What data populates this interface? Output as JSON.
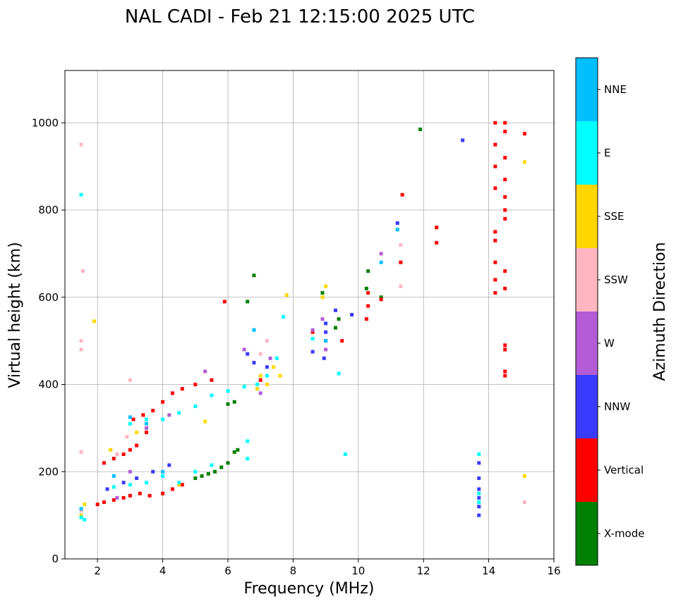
{
  "chart_data": {
    "type": "scatter",
    "title": "NAL CADI - Feb 21 12:15:00 2025 UTC",
    "xlabel": "Frequency (MHz)",
    "ylabel": "Virtual height (km)",
    "xlim": [
      1,
      16
    ],
    "ylim": [
      0,
      1120
    ],
    "xticks": [
      2,
      4,
      6,
      8,
      10,
      12,
      14,
      16
    ],
    "yticks": [
      0,
      200,
      400,
      600,
      800,
      1000
    ],
    "grid": true,
    "colorbar": {
      "label": "Azimuth Direction",
      "categories": [
        {
          "name": "X-mode",
          "color": "#008000"
        },
        {
          "name": "Vertical",
          "color": "#ff0000"
        },
        {
          "name": "NNW",
          "color": "#3b3bff"
        },
        {
          "name": "W",
          "color": "#b35cd6"
        },
        {
          "name": "SSW",
          "color": "#ffb6c1"
        },
        {
          "name": "SSE",
          "color": "#ffd700"
        },
        {
          "name": "E",
          "color": "#00ffff"
        },
        {
          "name": "NNE",
          "color": "#00bfff"
        }
      ]
    },
    "series": [
      {
        "name": "X-mode",
        "points": [
          [
            5.0,
            185
          ],
          [
            5.2,
            190
          ],
          [
            5.4,
            195
          ],
          [
            5.6,
            200
          ],
          [
            5.8,
            210
          ],
          [
            6.0,
            220
          ],
          [
            6.2,
            245
          ],
          [
            6.3,
            250
          ],
          [
            6.0,
            355
          ],
          [
            6.2,
            360
          ],
          [
            6.6,
            590
          ],
          [
            6.8,
            650
          ],
          [
            8.9,
            610
          ],
          [
            9.3,
            530
          ],
          [
            9.4,
            550
          ],
          [
            10.25,
            620
          ],
          [
            10.3,
            660
          ],
          [
            10.7,
            600
          ],
          [
            11.9,
            985
          ]
        ]
      },
      {
        "name": "Vertical",
        "points": [
          [
            2.0,
            125
          ],
          [
            2.2,
            130
          ],
          [
            2.5,
            135
          ],
          [
            2.8,
            140
          ],
          [
            3.0,
            145
          ],
          [
            3.3,
            150
          ],
          [
            3.6,
            145
          ],
          [
            4.0,
            150
          ],
          [
            4.3,
            160
          ],
          [
            4.6,
            170
          ],
          [
            2.2,
            220
          ],
          [
            2.5,
            230
          ],
          [
            2.8,
            240
          ],
          [
            3.0,
            250
          ],
          [
            3.2,
            260
          ],
          [
            3.5,
            290
          ],
          [
            3.1,
            320
          ],
          [
            3.4,
            330
          ],
          [
            3.7,
            340
          ],
          [
            4.0,
            360
          ],
          [
            4.3,
            380
          ],
          [
            4.6,
            390
          ],
          [
            5.0,
            400
          ],
          [
            5.5,
            410
          ],
          [
            5.9,
            590
          ],
          [
            7.0,
            410
          ],
          [
            8.6,
            520
          ],
          [
            9.5,
            500
          ],
          [
            10.25,
            550
          ],
          [
            10.3,
            580
          ],
          [
            10.3,
            610
          ],
          [
            10.7,
            595
          ],
          [
            11.3,
            680
          ],
          [
            11.35,
            835
          ],
          [
            12.4,
            725
          ],
          [
            12.4,
            760
          ],
          [
            14.2,
            610
          ],
          [
            14.2,
            640
          ],
          [
            14.2,
            680
          ],
          [
            14.2,
            730
          ],
          [
            14.2,
            750
          ],
          [
            14.2,
            850
          ],
          [
            14.2,
            900
          ],
          [
            14.2,
            950
          ],
          [
            14.2,
            1000
          ],
          [
            14.5,
            420
          ],
          [
            14.5,
            430
          ],
          [
            14.5,
            480
          ],
          [
            14.5,
            490
          ],
          [
            14.5,
            620
          ],
          [
            14.5,
            660
          ],
          [
            14.5,
            780
          ],
          [
            14.5,
            800
          ],
          [
            14.5,
            830
          ],
          [
            14.5,
            870
          ],
          [
            14.5,
            920
          ],
          [
            14.5,
            980
          ],
          [
            14.5,
            1000
          ],
          [
            15.1,
            975
          ]
        ]
      },
      {
        "name": "NNW",
        "points": [
          [
            2.3,
            160
          ],
          [
            2.8,
            175
          ],
          [
            3.2,
            185
          ],
          [
            3.7,
            200
          ],
          [
            4.2,
            215
          ],
          [
            6.6,
            470
          ],
          [
            6.8,
            450
          ],
          [
            7.2,
            440
          ],
          [
            8.6,
            475
          ],
          [
            8.95,
            460
          ],
          [
            9.0,
            500
          ],
          [
            9.0,
            520
          ],
          [
            9.0,
            540
          ],
          [
            9.3,
            570
          ],
          [
            9.8,
            560
          ],
          [
            11.2,
            770
          ],
          [
            13.2,
            960
          ],
          [
            13.7,
            100
          ],
          [
            13.7,
            120
          ],
          [
            13.7,
            140
          ],
          [
            13.7,
            160
          ],
          [
            13.7,
            185
          ],
          [
            13.7,
            220
          ]
        ]
      },
      {
        "name": "W",
        "points": [
          [
            2.6,
            140
          ],
          [
            3.0,
            200
          ],
          [
            3.5,
            300
          ],
          [
            4.2,
            330
          ],
          [
            5.3,
            430
          ],
          [
            6.5,
            480
          ],
          [
            7.0,
            380
          ],
          [
            7.3,
            460
          ],
          [
            8.6,
            525
          ],
          [
            8.9,
            550
          ],
          [
            9.0,
            480
          ],
          [
            10.7,
            700
          ]
        ]
      },
      {
        "name": "SSW",
        "points": [
          [
            1.5,
            110
          ],
          [
            1.5,
            245
          ],
          [
            1.5,
            480
          ],
          [
            1.5,
            500
          ],
          [
            1.55,
            660
          ],
          [
            1.5,
            950
          ],
          [
            2.6,
            240
          ],
          [
            2.9,
            280
          ],
          [
            3.0,
            410
          ],
          [
            7.0,
            470
          ],
          [
            7.2,
            500
          ],
          [
            11.3,
            625
          ],
          [
            11.3,
            720
          ],
          [
            15.1,
            130
          ]
        ]
      },
      {
        "name": "SSE",
        "points": [
          [
            1.5,
            100
          ],
          [
            1.6,
            125
          ],
          [
            1.9,
            545
          ],
          [
            2.4,
            250
          ],
          [
            3.2,
            290
          ],
          [
            4.5,
            170
          ],
          [
            5.3,
            315
          ],
          [
            6.9,
            390
          ],
          [
            7.0,
            420
          ],
          [
            7.2,
            400
          ],
          [
            7.4,
            440
          ],
          [
            7.6,
            420
          ],
          [
            7.8,
            605
          ],
          [
            8.9,
            600
          ],
          [
            9.0,
            625
          ],
          [
            15.1,
            190
          ],
          [
            15.1,
            910
          ]
        ]
      },
      {
        "name": "E",
        "points": [
          [
            1.5,
            95
          ],
          [
            1.6,
            90
          ],
          [
            1.5,
            835
          ],
          [
            2.5,
            165
          ],
          [
            3.0,
            170
          ],
          [
            3.5,
            175
          ],
          [
            4.0,
            190
          ],
          [
            4.5,
            175
          ],
          [
            5.0,
            200
          ],
          [
            5.5,
            215
          ],
          [
            3.0,
            310
          ],
          [
            3.5,
            320
          ],
          [
            4.0,
            320
          ],
          [
            4.5,
            335
          ],
          [
            5.0,
            350
          ],
          [
            5.5,
            375
          ],
          [
            6.0,
            385
          ],
          [
            6.5,
            395
          ],
          [
            6.6,
            270
          ],
          [
            6.6,
            230
          ],
          [
            6.9,
            400
          ],
          [
            7.2,
            420
          ],
          [
            7.5,
            460
          ],
          [
            7.7,
            555
          ],
          [
            8.6,
            505
          ],
          [
            9.6,
            240
          ],
          [
            9.4,
            425
          ],
          [
            13.7,
            240
          ],
          [
            13.7,
            130
          ],
          [
            13.7,
            150
          ]
        ]
      },
      {
        "name": "NNE",
        "points": [
          [
            1.5,
            115
          ],
          [
            2.5,
            190
          ],
          [
            3.0,
            325
          ],
          [
            3.5,
            310
          ],
          [
            4.0,
            200
          ],
          [
            6.8,
            525
          ],
          [
            9.0,
            500
          ],
          [
            10.7,
            680
          ],
          [
            11.2,
            755
          ]
        ]
      }
    ]
  }
}
